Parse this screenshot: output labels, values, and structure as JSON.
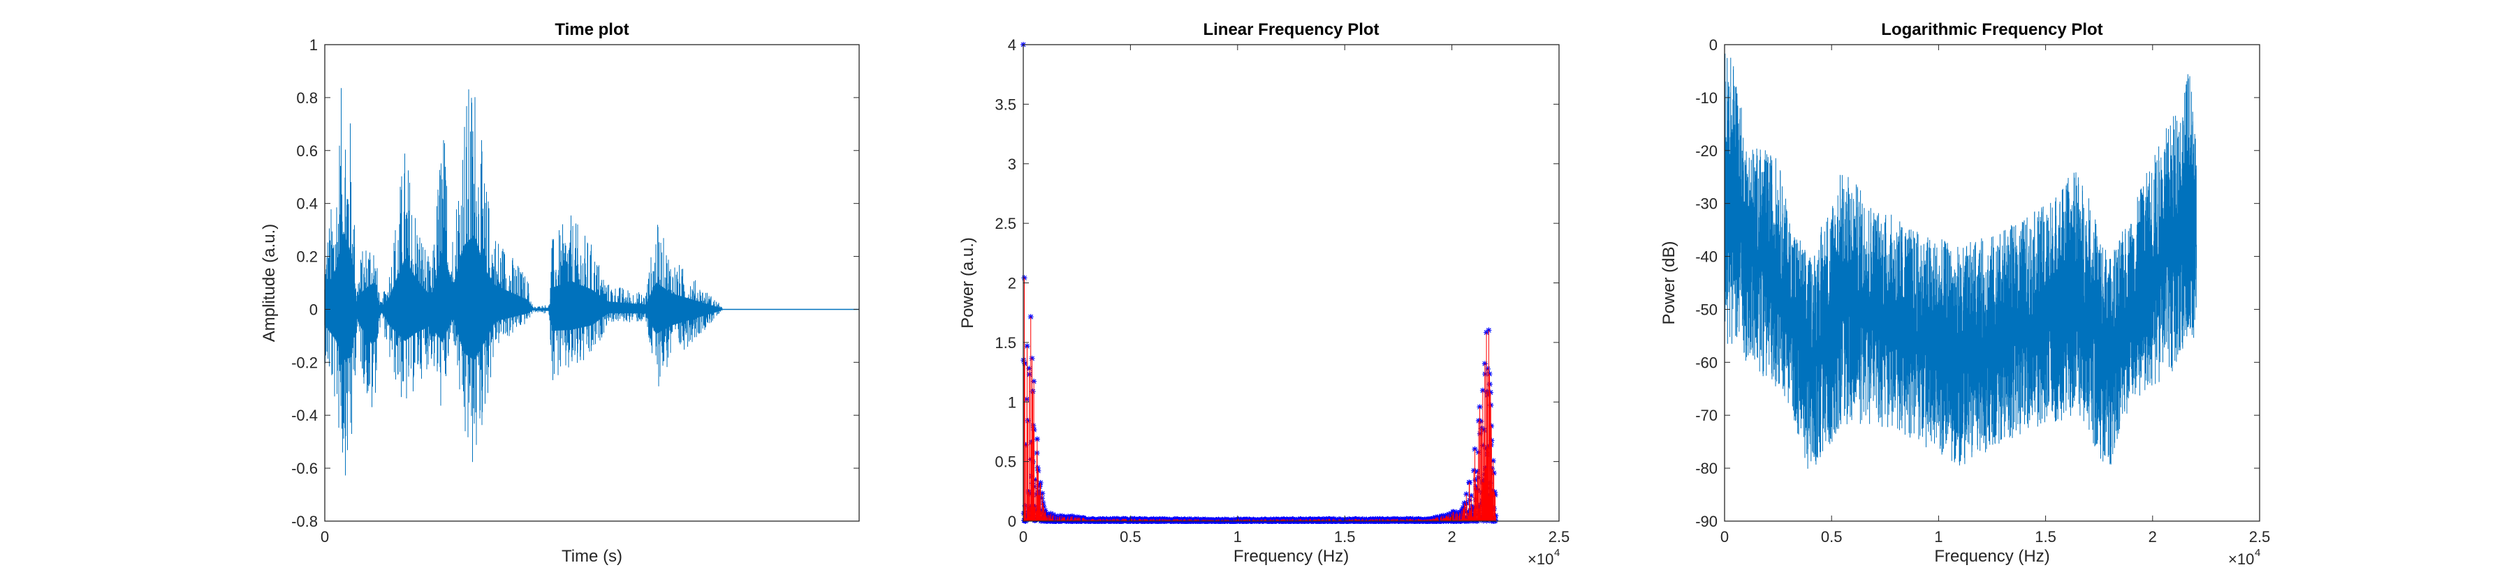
{
  "chart_data": [
    {
      "type": "line",
      "title": "Time plot",
      "xlabel": "Time (s)",
      "ylabel": "Amplitude (a.u.)",
      "ylim": [
        -0.8,
        1
      ],
      "yticks": [
        "-0.8",
        "-0.6",
        "-0.4",
        "-0.2",
        "0",
        "0.2",
        "0.4",
        "0.6",
        "0.8",
        "1"
      ],
      "xticks": [
        "0"
      ],
      "color": "#0072bd",
      "envelope": {
        "x_fraction_of_axis": [
          0,
          0.02,
          0.035,
          0.05,
          0.06,
          0.065,
          0.09,
          0.105,
          0.12,
          0.15,
          0.17,
          0.2,
          0.22,
          0.24,
          0.26,
          0.28,
          0.3,
          0.32,
          0.38,
          0.39,
          0.42,
          0.425,
          0.46,
          0.5,
          0.53,
          0.6,
          0.62,
          0.65,
          0.7,
          0.74,
          0.745,
          1
        ],
        "upper": [
          0.25,
          0.5,
          0.98,
          0.7,
          0.1,
          0.2,
          0.33,
          0.02,
          0.15,
          0.64,
          0.4,
          0.15,
          0.76,
          0.3,
          0.8,
          0.94,
          0.5,
          0.3,
          0.12,
          0.01,
          0.02,
          0.27,
          0.36,
          0.25,
          0.1,
          0.06,
          0.34,
          0.2,
          0.1,
          0.02,
          0,
          0
        ],
        "lower": [
          -0.2,
          -0.38,
          -0.64,
          -0.6,
          -0.1,
          -0.2,
          -0.46,
          -0.02,
          -0.2,
          -0.4,
          -0.3,
          -0.2,
          -0.42,
          -0.1,
          -0.55,
          -0.64,
          -0.4,
          -0.15,
          -0.05,
          -0.01,
          -0.02,
          -0.27,
          -0.26,
          -0.2,
          -0.05,
          -0.05,
          -0.31,
          -0.2,
          -0.1,
          -0.02,
          0,
          0
        ]
      }
    },
    {
      "type": "line",
      "title": "Linear Frequency Plot",
      "xlabel": "Frequency (Hz)",
      "ylabel": "Power (a.u.)",
      "xlim": [
        0,
        25000
      ],
      "ylim": [
        0,
        4
      ],
      "xticks": [
        "0",
        "0.5",
        "1",
        "1.5",
        "2",
        "2.5"
      ],
      "yticks": [
        "0",
        "0.5",
        "1",
        "1.5",
        "2",
        "2.5",
        "3",
        "3.5",
        "4"
      ],
      "x_exponent": "×10",
      "x_exponent_power": "4",
      "line_color": "#ff0000",
      "marker_color": "#0000ff",
      "marker": "*",
      "envelope": {
        "x": [
          0,
          100,
          200,
          300,
          400,
          500,
          600,
          700,
          1000,
          1500,
          2500,
          3000,
          5000,
          10000,
          15000,
          19000,
          19500,
          20500,
          21000,
          21350,
          21450,
          21550,
          21650,
          21750,
          21850,
          21950,
          22050
        ],
        "upper": [
          4,
          1.0,
          1.6,
          2.05,
          1.45,
          1.3,
          1.15,
          0.5,
          0.1,
          0.05,
          0.04,
          0.02,
          0.02,
          0.015,
          0.02,
          0.02,
          0.05,
          0.1,
          0.5,
          1.15,
          1.3,
          1.45,
          2.05,
          1.6,
          1.0,
          0.5,
          0.1
        ]
      }
    },
    {
      "type": "line",
      "title": "Logarithmic Frequency Plot",
      "xlabel": "Frequency (Hz)",
      "ylabel": "Power (dB)",
      "xlim": [
        0,
        25000
      ],
      "ylim": [
        -90,
        0
      ],
      "xticks": [
        "0",
        "0.5",
        "1",
        "1.5",
        "2",
        "2.5"
      ],
      "yticks": [
        "-90",
        "-80",
        "-70",
        "-60",
        "-50",
        "-40",
        "-30",
        "-20",
        "-10",
        "0"
      ],
      "x_exponent": "×10",
      "x_exponent_power": "4",
      "color": "#0072bd",
      "envelope": {
        "x": [
          0,
          500,
          1000,
          2500,
          3000,
          4000,
          5500,
          7000,
          9000,
          11000,
          13000,
          15000,
          16500,
          18000,
          19000,
          20000,
          21500,
          21700,
          22050
        ],
        "upper": [
          0,
          -3,
          -18,
          -21,
          -32,
          -40,
          -23,
          -30,
          -35,
          -38,
          -35,
          -30,
          -23,
          -40,
          -32,
          -21,
          -8,
          -3,
          -20
        ],
        "lower": [
          -60,
          -55,
          -60,
          -65,
          -68,
          -82,
          -72,
          -72,
          -75,
          -80,
          -75,
          -72,
          -70,
          -82,
          -68,
          -65,
          -60,
          -55,
          -56
        ]
      }
    }
  ]
}
